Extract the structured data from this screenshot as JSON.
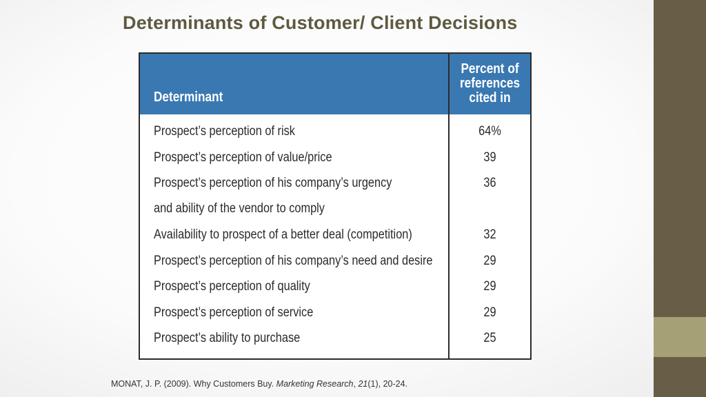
{
  "slide": {
    "title": "Determinants of Customer/ Client Decisions"
  },
  "table": {
    "headers": {
      "determinant": "Determinant",
      "percent": [
        "Percent of",
        "references",
        "cited in"
      ]
    },
    "rows": [
      {
        "label": "Prospect’s perception of risk",
        "value": "64%"
      },
      {
        "label": "Prospect’s perception of value/price",
        "value": "39"
      },
      {
        "label": "Prospect’s perception of his company’s urgency",
        "value": "36"
      },
      {
        "label": "and ability of the vendor to comply",
        "value": ""
      },
      {
        "label": "Availability to prospect of a better deal (competition)",
        "value": "32"
      },
      {
        "label": "Prospect’s perception of his company’s need and desire",
        "value": "29"
      },
      {
        "label": "Prospect’s perception of quality",
        "value": "29"
      },
      {
        "label": "Prospect’s perception of service",
        "value": "29"
      },
      {
        "label": "Prospect’s ability to purchase",
        "value": "25"
      }
    ]
  },
  "citation": {
    "authors": "MONAT, J. P. (2009). Why Customers Buy. ",
    "journal": "Marketing Research",
    "sep1": ", ",
    "volume": "21",
    "rest": "(1), 20-24."
  },
  "theme": {
    "title_color": "#5e5940",
    "header_blue": "#3a78b2",
    "sidebar_dark": "#685e47",
    "sidebar_light": "#a6a077"
  }
}
